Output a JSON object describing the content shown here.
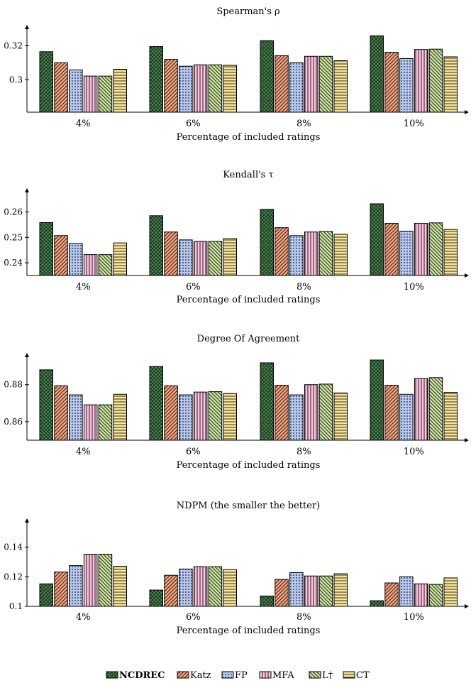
{
  "legend": [
    {
      "name": "NCDREC",
      "bold": true,
      "fill": "#4f8a55",
      "pattern": "crosshatch-dots"
    },
    {
      "name": "Katz",
      "fill": "#f4a582",
      "pattern": "diagonal"
    },
    {
      "name": "FP",
      "fill": "#b8c8ec",
      "pattern": "dots"
    },
    {
      "name": "MFA",
      "fill": "#f6c6de",
      "pattern": "vertical"
    },
    {
      "name": "L†",
      "fill": "#cfe3a6",
      "pattern": "diagonal-back"
    },
    {
      "name": "CT",
      "fill": "#f5e49b",
      "pattern": "horizontal"
    }
  ],
  "chart_data": [
    {
      "type": "bar",
      "title": "Spearman's ρ",
      "xlabel": "Percentage of included ratings",
      "categories": [
        "4%",
        "6%",
        "8%",
        "10%"
      ],
      "ylim": [
        0.281,
        0.331
      ],
      "yticks": [
        0.3,
        0.32
      ],
      "ytick_labels": [
        "0.3",
        "0.32"
      ],
      "series": [
        {
          "name": "NCDREC",
          "values": [
            0.3165,
            0.3195,
            0.323,
            0.3258
          ]
        },
        {
          "name": "Katz",
          "values": [
            0.31,
            0.312,
            0.3142,
            0.3162
          ]
        },
        {
          "name": "FP",
          "values": [
            0.3058,
            0.308,
            0.31,
            0.3125
          ]
        },
        {
          "name": "MFA",
          "values": [
            0.3022,
            0.3088,
            0.3138,
            0.3178
          ]
        },
        {
          "name": "L†",
          "values": [
            0.3022,
            0.3088,
            0.3138,
            0.318
          ]
        },
        {
          "name": "CT",
          "values": [
            0.3062,
            0.3085,
            0.3112,
            0.3135
          ]
        }
      ]
    },
    {
      "type": "bar",
      "title": "Kendall's τ",
      "xlabel": "Percentage of included ratings",
      "categories": [
        "4%",
        "6%",
        "8%",
        "10%"
      ],
      "ylim": [
        0.235,
        0.2685
      ],
      "yticks": [
        0.24,
        0.25,
        0.26
      ],
      "ytick_labels": [
        "0.24",
        "0.25",
        "0.26"
      ],
      "series": [
        {
          "name": "NCDREC",
          "values": [
            0.2558,
            0.2585,
            0.261,
            0.2632
          ]
        },
        {
          "name": "Katz",
          "values": [
            0.2507,
            0.2521,
            0.2538,
            0.2555
          ]
        },
        {
          "name": "FP",
          "values": [
            0.2476,
            0.249,
            0.2507,
            0.2524
          ]
        },
        {
          "name": "MFA",
          "values": [
            0.2432,
            0.2484,
            0.2521,
            0.2555
          ]
        },
        {
          "name": "L†",
          "values": [
            0.2432,
            0.2484,
            0.2523,
            0.2557
          ]
        },
        {
          "name": "CT",
          "values": [
            0.2478,
            0.2495,
            0.2512,
            0.2531
          ]
        }
      ]
    },
    {
      "type": "bar",
      "title": "Degree Of Agreement",
      "xlabel": "Percentage of included ratings",
      "categories": [
        "4%",
        "6%",
        "8%",
        "10%"
      ],
      "ylim": [
        0.85,
        0.896
      ],
      "yticks": [
        0.86,
        0.88
      ],
      "ytick_labels": [
        "0.86",
        "0.88"
      ],
      "series": [
        {
          "name": "NCDREC",
          "values": [
            0.888,
            0.8898,
            0.8918,
            0.8933
          ]
        },
        {
          "name": "Katz",
          "values": [
            0.8794,
            0.8794,
            0.8797,
            0.8797
          ]
        },
        {
          "name": "FP",
          "values": [
            0.8745,
            0.8745,
            0.8745,
            0.8748
          ]
        },
        {
          "name": "MFA",
          "values": [
            0.8691,
            0.876,
            0.88,
            0.8833
          ]
        },
        {
          "name": "L†",
          "values": [
            0.8691,
            0.8762,
            0.8803,
            0.8838
          ]
        },
        {
          "name": "CT",
          "values": [
            0.8748,
            0.8752,
            0.8755,
            0.8758
          ]
        }
      ]
    },
    {
      "type": "bar",
      "title": "NDPM (the smaller the better)",
      "xlabel": "Percentage of included ratings",
      "categories": [
        "4%",
        "6%",
        "8%",
        "10%"
      ],
      "ylim": [
        0.1,
        0.158
      ],
      "yticks": [
        0.1,
        0.12,
        0.14
      ],
      "ytick_labels": [
        "0.1",
        "0.12",
        "0.14"
      ],
      "series": [
        {
          "name": "NCDREC",
          "values": [
            0.1152,
            0.111,
            0.107,
            0.1038
          ]
        },
        {
          "name": "Katz",
          "values": [
            0.1232,
            0.121,
            0.1182,
            0.1158
          ]
        },
        {
          "name": "FP",
          "values": [
            0.1275,
            0.1252,
            0.1228,
            0.12
          ]
        },
        {
          "name": "MFA",
          "values": [
            0.1352,
            0.1268,
            0.1205,
            0.1152
          ]
        },
        {
          "name": "L†",
          "values": [
            0.1352,
            0.1268,
            0.1205,
            0.1148
          ]
        },
        {
          "name": "CT",
          "values": [
            0.127,
            0.1248,
            0.122,
            0.1192
          ]
        }
      ]
    }
  ]
}
